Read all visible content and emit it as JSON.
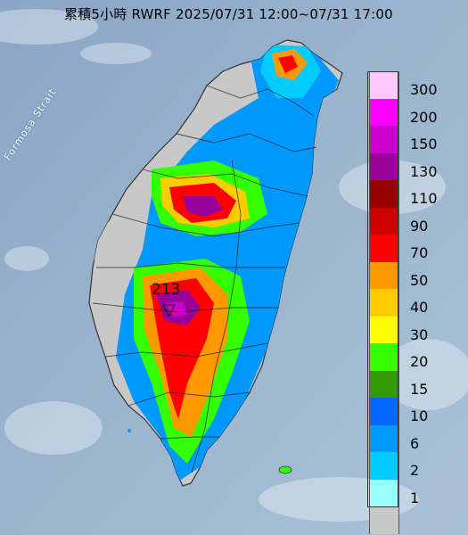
{
  "title": "累積5小時 RWRF 2025/07/31 12:00~07/31 17:00",
  "labels": {
    "strait": "Formosa Strait",
    "peak_value": "213"
  },
  "legend": [
    {
      "label": "300",
      "color": "#ffc8ff"
    },
    {
      "label": "200",
      "color": "#ff00ff"
    },
    {
      "label": "150",
      "color": "#cc00cc"
    },
    {
      "label": "130",
      "color": "#990099"
    },
    {
      "label": "110",
      "color": "#990000"
    },
    {
      "label": "90",
      "color": "#cc0000"
    },
    {
      "label": "70",
      "color": "#ff0000"
    },
    {
      "label": "50",
      "color": "#ff9900"
    },
    {
      "label": "40",
      "color": "#ffcc00"
    },
    {
      "label": "30",
      "color": "#ffff00"
    },
    {
      "label": "20",
      "color": "#33ff00"
    },
    {
      "label": "15",
      "color": "#339900"
    },
    {
      "label": "10",
      "color": "#0066ff"
    },
    {
      "label": "6",
      "color": "#0099ff"
    },
    {
      "label": "2",
      "color": "#00ccff"
    },
    {
      "label": "1",
      "color": "#99ffff"
    },
    {
      "label": "",
      "color": "#c8c8c8"
    }
  ]
}
